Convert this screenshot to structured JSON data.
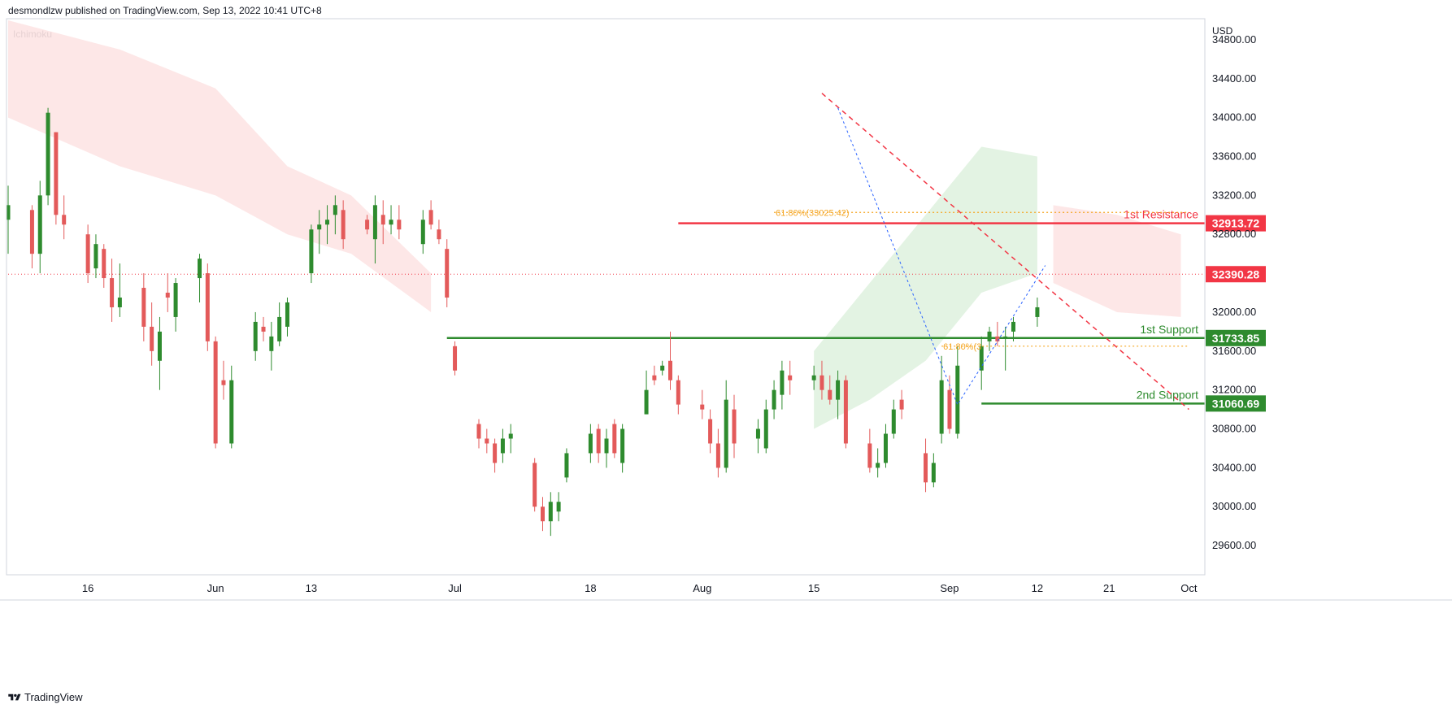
{
  "header": {
    "published": "desmondlzw published on TradingView.com, Sep 13, 2022 10:41 UTC+8",
    "indicator": "Ichimoku"
  },
  "footer": {
    "brand": "TradingView",
    "logo_icon": "tradingview-logo-icon"
  },
  "colors": {
    "up": "#2e8b2e",
    "down": "#e35a5a",
    "resistance": "#f23645",
    "support": "#2e8b2e",
    "fib": "#f5a623",
    "trend": "#f23645",
    "leg": "#2962ff",
    "cloud_green": "#e0f2e0",
    "cloud_red": "#fde4e4",
    "price": "#f23645"
  },
  "chart_data": {
    "type": "candlestick",
    "currency": "USD",
    "ylim": [
      29300,
      35000
    ],
    "y_ticks": [
      34800,
      34400,
      34000,
      33600,
      33200,
      32800,
      32000,
      31600,
      31200,
      30800,
      30400,
      30000,
      29600
    ],
    "y_tick_labels": [
      "34800.00",
      "34400.00",
      "34000.00",
      "33600.00",
      "33200.00",
      "32800.00",
      "32000.00",
      "31600.00",
      "31200.00",
      "30800.00",
      "30400.00",
      "30000.00",
      "29600.00"
    ],
    "x_ticks": [
      {
        "label": "16",
        "t": 1
      },
      {
        "label": "Jun",
        "t": 2
      },
      {
        "label": "13",
        "t": 3
      },
      {
        "label": "Jul",
        "t": 4
      },
      {
        "label": "18",
        "t": 5
      },
      {
        "label": "Aug",
        "t": 6
      },
      {
        "label": "15",
        "t": 7
      },
      {
        "label": "Sep",
        "t": 8
      },
      {
        "label": "12",
        "t": 9
      },
      {
        "label": "21",
        "t": 10
      },
      {
        "label": "Oct",
        "t": 11
      }
    ],
    "x_tick_dates": [
      "2022-05-16",
      "2022-06-01",
      "2022-06-13",
      "2022-07-01",
      "2022-07-18",
      "2022-08-01",
      "2022-08-15",
      "2022-09-01",
      "2022-09-12",
      "2022-09-21",
      "2022-10-01"
    ],
    "candles": [
      {
        "date": "2022-05-06",
        "o": 32950,
        "h": 33300,
        "l": 32600,
        "c": 33100
      },
      {
        "date": "2022-05-09",
        "o": 33050,
        "h": 33100,
        "l": 32450,
        "c": 32600
      },
      {
        "date": "2022-05-10",
        "o": 32600,
        "h": 33350,
        "l": 32400,
        "c": 33200
      },
      {
        "date": "2022-05-11",
        "o": 33200,
        "h": 34100,
        "l": 33100,
        "c": 34050
      },
      {
        "date": "2022-05-12",
        "o": 33850,
        "h": 33850,
        "l": 32900,
        "c": 33000
      },
      {
        "date": "2022-05-13",
        "o": 33000,
        "h": 33200,
        "l": 32750,
        "c": 32900
      },
      {
        "date": "2022-05-16",
        "o": 32800,
        "h": 32900,
        "l": 32300,
        "c": 32400
      },
      {
        "date": "2022-05-17",
        "o": 32450,
        "h": 32800,
        "l": 32350,
        "c": 32700
      },
      {
        "date": "2022-05-18",
        "o": 32650,
        "h": 32700,
        "l": 32250,
        "c": 32350
      },
      {
        "date": "2022-05-19",
        "o": 32350,
        "h": 32550,
        "l": 31900,
        "c": 32050
      },
      {
        "date": "2022-05-20",
        "o": 32050,
        "h": 32500,
        "l": 31950,
        "c": 32150
      },
      {
        "date": "2022-05-23",
        "o": 32250,
        "h": 32400,
        "l": 31700,
        "c": 31850
      },
      {
        "date": "2022-05-24",
        "o": 31850,
        "h": 32100,
        "l": 31450,
        "c": 31600
      },
      {
        "date": "2022-05-25",
        "o": 31500,
        "h": 31950,
        "l": 31200,
        "c": 31800
      },
      {
        "date": "2022-05-26",
        "o": 32200,
        "h": 32400,
        "l": 32000,
        "c": 32150
      },
      {
        "date": "2022-05-27",
        "o": 31950,
        "h": 32350,
        "l": 31800,
        "c": 32300
      },
      {
        "date": "2022-05-30",
        "o": 32350,
        "h": 32600,
        "l": 32100,
        "c": 32550
      },
      {
        "date": "2022-05-31",
        "o": 32400,
        "h": 32500,
        "l": 31600,
        "c": 31700
      },
      {
        "date": "2022-06-01",
        "o": 31700,
        "h": 31750,
        "l": 30600,
        "c": 30650
      },
      {
        "date": "2022-06-02",
        "o": 31300,
        "h": 31500,
        "l": 31100,
        "c": 31250
      },
      {
        "date": "2022-06-03",
        "o": 30650,
        "h": 31450,
        "l": 30600,
        "c": 31300
      },
      {
        "date": "2022-06-06",
        "o": 31600,
        "h": 32000,
        "l": 31500,
        "c": 31900
      },
      {
        "date": "2022-06-07",
        "o": 31850,
        "h": 31950,
        "l": 31700,
        "c": 31800
      },
      {
        "date": "2022-06-08",
        "o": 31600,
        "h": 31900,
        "l": 31400,
        "c": 31750
      },
      {
        "date": "2022-06-09",
        "o": 31700,
        "h": 32100,
        "l": 31650,
        "c": 31950
      },
      {
        "date": "2022-06-10",
        "o": 31850,
        "h": 32150,
        "l": 31750,
        "c": 32100
      },
      {
        "date": "2022-06-13",
        "o": 32400,
        "h": 32900,
        "l": 32300,
        "c": 32850
      },
      {
        "date": "2022-06-14",
        "o": 32850,
        "h": 33050,
        "l": 32600,
        "c": 32900
      },
      {
        "date": "2022-06-15",
        "o": 32900,
        "h": 33100,
        "l": 32700,
        "c": 32950
      },
      {
        "date": "2022-06-16",
        "o": 33000,
        "h": 33200,
        "l": 32800,
        "c": 33100
      },
      {
        "date": "2022-06-17",
        "o": 33050,
        "h": 33150,
        "l": 32650,
        "c": 32750
      },
      {
        "date": "2022-06-20",
        "o": 32950,
        "h": 33000,
        "l": 32800,
        "c": 32850
      },
      {
        "date": "2022-06-21",
        "o": 32750,
        "h": 33200,
        "l": 32500,
        "c": 33100
      },
      {
        "date": "2022-06-22",
        "o": 33000,
        "h": 33150,
        "l": 32700,
        "c": 32900
      },
      {
        "date": "2022-06-23",
        "o": 32900,
        "h": 33100,
        "l": 32800,
        "c": 32950
      },
      {
        "date": "2022-06-24",
        "o": 32950,
        "h": 33100,
        "l": 32750,
        "c": 32850
      },
      {
        "date": "2022-06-27",
        "o": 32700,
        "h": 33050,
        "l": 32600,
        "c": 32950
      },
      {
        "date": "2022-06-28",
        "o": 33050,
        "h": 33150,
        "l": 32850,
        "c": 32900
      },
      {
        "date": "2022-06-29",
        "o": 32850,
        "h": 32950,
        "l": 32700,
        "c": 32750
      },
      {
        "date": "2022-06-30",
        "o": 32650,
        "h": 32750,
        "l": 32050,
        "c": 32150
      },
      {
        "date": "2022-07-01",
        "o": 31650,
        "h": 31700,
        "l": 31350,
        "c": 31400
      },
      {
        "date": "2022-07-04",
        "o": 30850,
        "h": 30900,
        "l": 30600,
        "c": 30700
      },
      {
        "date": "2022-07-05",
        "o": 30700,
        "h": 30800,
        "l": 30550,
        "c": 30650
      },
      {
        "date": "2022-07-06",
        "o": 30650,
        "h": 30700,
        "l": 30350,
        "c": 30450
      },
      {
        "date": "2022-07-07",
        "o": 30550,
        "h": 30800,
        "l": 30450,
        "c": 30700
      },
      {
        "date": "2022-07-08",
        "o": 30700,
        "h": 30850,
        "l": 30550,
        "c": 30750
      },
      {
        "date": "2022-07-11",
        "o": 30450,
        "h": 30500,
        "l": 29950,
        "c": 30000
      },
      {
        "date": "2022-07-12",
        "o": 30000,
        "h": 30100,
        "l": 29750,
        "c": 29850
      },
      {
        "date": "2022-07-13",
        "o": 29850,
        "h": 30150,
        "l": 29700,
        "c": 30050
      },
      {
        "date": "2022-07-14",
        "o": 29950,
        "h": 30150,
        "l": 29850,
        "c": 30050
      },
      {
        "date": "2022-07-15",
        "o": 30300,
        "h": 30600,
        "l": 30250,
        "c": 30550
      },
      {
        "date": "2022-07-18",
        "o": 30550,
        "h": 30850,
        "l": 30450,
        "c": 30750
      },
      {
        "date": "2022-07-19",
        "o": 30800,
        "h": 30850,
        "l": 30450,
        "c": 30550
      },
      {
        "date": "2022-07-20",
        "o": 30550,
        "h": 30800,
        "l": 30400,
        "c": 30700
      },
      {
        "date": "2022-07-21",
        "o": 30850,
        "h": 30900,
        "l": 30500,
        "c": 30550
      },
      {
        "date": "2022-07-22",
        "o": 30450,
        "h": 30850,
        "l": 30350,
        "c": 30800
      },
      {
        "date": "2022-07-25",
        "o": 30950,
        "h": 31400,
        "l": 30950,
        "c": 31200
      },
      {
        "date": "2022-07-26",
        "o": 31350,
        "h": 31450,
        "l": 31250,
        "c": 31300
      },
      {
        "date": "2022-07-27",
        "o": 31400,
        "h": 31500,
        "l": 31350,
        "c": 31450
      },
      {
        "date": "2022-07-28",
        "o": 31500,
        "h": 31800,
        "l": 31200,
        "c": 31300
      },
      {
        "date": "2022-07-29",
        "o": 31300,
        "h": 31350,
        "l": 30950,
        "c": 31050
      },
      {
        "date": "2022-08-01",
        "o": 31050,
        "h": 31200,
        "l": 30900,
        "c": 31000
      },
      {
        "date": "2022-08-02",
        "o": 30900,
        "h": 31000,
        "l": 30550,
        "c": 30650
      },
      {
        "date": "2022-08-03",
        "o": 30650,
        "h": 30800,
        "l": 30300,
        "c": 30400
      },
      {
        "date": "2022-08-04",
        "o": 30400,
        "h": 31300,
        "l": 30350,
        "c": 31100
      },
      {
        "date": "2022-08-05",
        "o": 31000,
        "h": 31150,
        "l": 30500,
        "c": 30650
      },
      {
        "date": "2022-08-08",
        "o": 30700,
        "h": 30900,
        "l": 30550,
        "c": 30800
      },
      {
        "date": "2022-08-09",
        "o": 30600,
        "h": 31100,
        "l": 30550,
        "c": 31000
      },
      {
        "date": "2022-08-10",
        "o": 31000,
        "h": 31300,
        "l": 30900,
        "c": 31200
      },
      {
        "date": "2022-08-11",
        "o": 31150,
        "h": 31500,
        "l": 31000,
        "c": 31400
      },
      {
        "date": "2022-08-12",
        "o": 31350,
        "h": 31500,
        "l": 31150,
        "c": 31300
      },
      {
        "date": "2022-08-15",
        "o": 31300,
        "h": 31450,
        "l": 31200,
        "c": 31350
      },
      {
        "date": "2022-08-16",
        "o": 31350,
        "h": 31500,
        "l": 31100,
        "c": 31200
      },
      {
        "date": "2022-08-17",
        "o": 31200,
        "h": 31350,
        "l": 31050,
        "c": 31100
      },
      {
        "date": "2022-08-18",
        "o": 31100,
        "h": 31400,
        "l": 30900,
        "c": 31300
      },
      {
        "date": "2022-08-19",
        "o": 31300,
        "h": 31350,
        "l": 30600,
        "c": 30650
      },
      {
        "date": "2022-08-22",
        "o": 30650,
        "h": 30800,
        "l": 30350,
        "c": 30400
      },
      {
        "date": "2022-08-23",
        "o": 30400,
        "h": 30600,
        "l": 30300,
        "c": 30450
      },
      {
        "date": "2022-08-24",
        "o": 30450,
        "h": 30850,
        "l": 30400,
        "c": 30750
      },
      {
        "date": "2022-08-25",
        "o": 30750,
        "h": 31100,
        "l": 30700,
        "c": 31000
      },
      {
        "date": "2022-08-26",
        "o": 31100,
        "h": 31200,
        "l": 30900,
        "c": 31000
      },
      {
        "date": "2022-08-29",
        "o": 30550,
        "h": 30700,
        "l": 30150,
        "c": 30250
      },
      {
        "date": "2022-08-30",
        "o": 30250,
        "h": 30550,
        "l": 30200,
        "c": 30450
      },
      {
        "date": "2022-08-31",
        "o": 30750,
        "h": 31550,
        "l": 30650,
        "c": 31300
      },
      {
        "date": "2022-09-01",
        "o": 31200,
        "h": 31350,
        "l": 30750,
        "c": 30800
      },
      {
        "date": "2022-09-02",
        "o": 30750,
        "h": 31650,
        "l": 30700,
        "c": 31450
      },
      {
        "date": "2022-09-05",
        "o": 31400,
        "h": 31750,
        "l": 31200,
        "c": 31650
      },
      {
        "date": "2022-09-06",
        "o": 31700,
        "h": 31850,
        "l": 31600,
        "c": 31800
      },
      {
        "date": "2022-09-07",
        "o": 31750,
        "h": 31900,
        "l": 31650,
        "c": 31700
      },
      {
        "date": "2022-09-08",
        "o": 31750,
        "h": 31850,
        "l": 31400,
        "c": 31750
      },
      {
        "date": "2022-09-09",
        "o": 31800,
        "h": 31950,
        "l": 31700,
        "c": 31900
      },
      {
        "date": "2022-09-12",
        "o": 31950,
        "h": 32150,
        "l": 31850,
        "c": 32050
      }
    ],
    "horizontal_levels": [
      {
        "name": "1st Resistance",
        "value": 32913.72,
        "label": "32913.72"
      },
      {
        "name": "1st Support",
        "value": 31733.85,
        "label": "31733.85"
      },
      {
        "name": "2nd Support",
        "value": 31060.69,
        "label": "31060.69"
      }
    ],
    "last_price": {
      "value": 32390.28,
      "label": "32390.28"
    },
    "fib_labels": [
      "61.80%(33025.42)",
      "61.80%(3"
    ],
    "fib_levels": [
      33025.42,
      31650
    ],
    "trendline": {
      "from": [
        "2022-08-16",
        34250
      ],
      "to": [
        "2022-10-01",
        31000
      ]
    },
    "ichimoku_cloud": {
      "shown": true
    }
  }
}
